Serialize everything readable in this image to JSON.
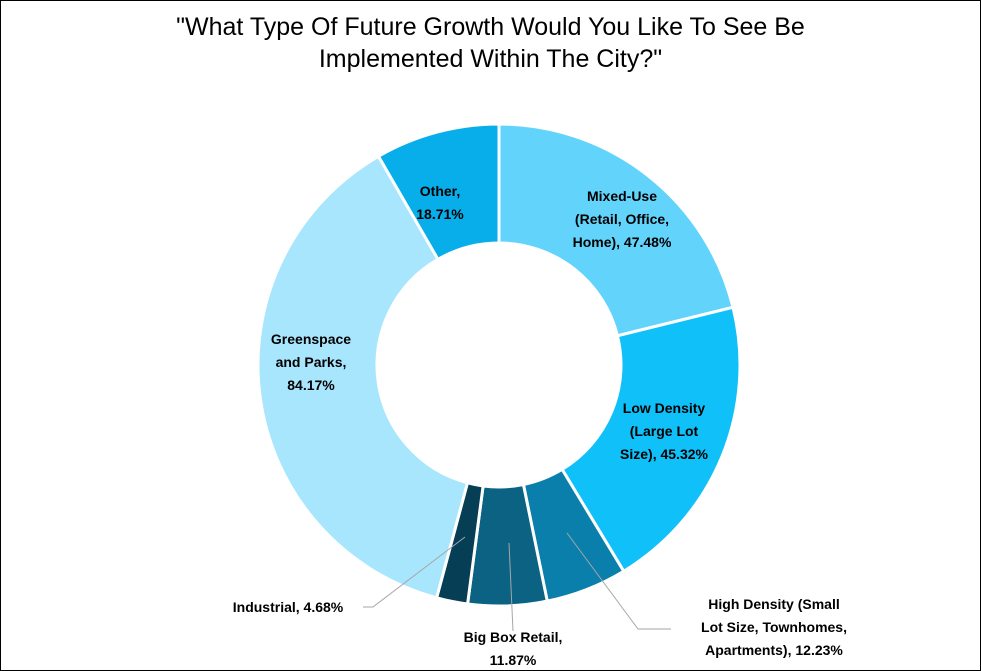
{
  "chart_data": {
    "type": "pie",
    "title_lines": [
      "\"What Type Of Future Growth Would You Like To See Be",
      "Implemented Within The City?\""
    ],
    "slices": [
      {
        "category": "Mixed-Use (Retail, Office, Home)",
        "value": 47.48,
        "label_lines": [
          "Mixed-Use",
          "(Retail, Office,",
          "Home), 47.48%"
        ],
        "color": "#62d4fb"
      },
      {
        "category": "Low Density (Large Lot Size)",
        "value": 45.32,
        "label_lines": [
          "Low Density",
          "(Large Lot",
          "Size), 45.32%"
        ],
        "color": "#10c0f8"
      },
      {
        "category": "High Density (Small Lot Size, Townhomes, Apartments)",
        "value": 12.23,
        "label_lines": [
          "High Density (Small",
          "Lot Size, Townhomes,",
          "Apartments), 12.23%"
        ],
        "color": "#0a7fab"
      },
      {
        "category": "Big Box Retail",
        "value": 11.87,
        "label_lines": [
          "Big Box Retail,",
          "11.87%"
        ],
        "color": "#0b6283"
      },
      {
        "category": "Industrial",
        "value": 4.68,
        "label_lines": [
          "Industrial, 4.68%"
        ],
        "color": "#053e55"
      },
      {
        "category": "Greenspace and Parks",
        "value": 84.17,
        "label_lines": [
          "Greenspace",
          "and Parks,",
          "84.17%"
        ],
        "color": "#a8e6fd"
      },
      {
        "category": "Other",
        "value": 18.71,
        "label_lines": [
          "Other,",
          "18.71%"
        ],
        "color": "#08aeea"
      }
    ]
  }
}
